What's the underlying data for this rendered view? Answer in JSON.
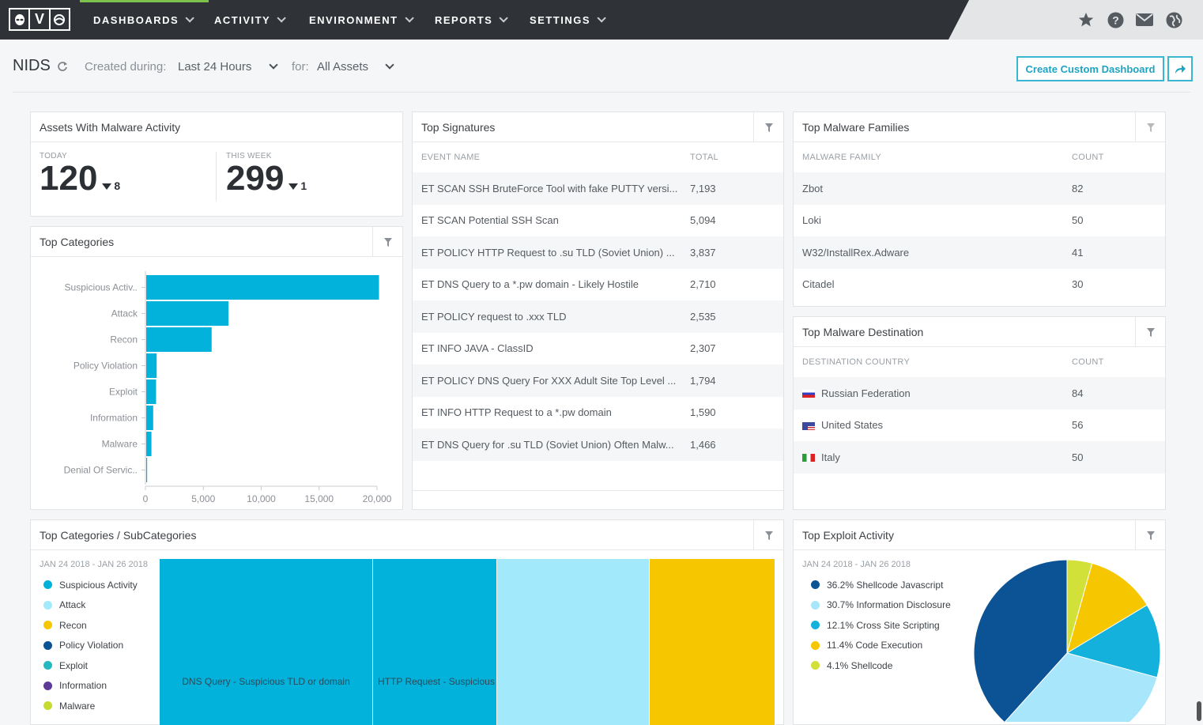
{
  "nav": {
    "logo_letters": [
      "",
      "V",
      ""
    ],
    "items": [
      {
        "label": "DASHBOARDS"
      },
      {
        "label": "ACTIVITY"
      },
      {
        "label": "ENVIRONMENT"
      },
      {
        "label": "REPORTS"
      },
      {
        "label": "SETTINGS"
      }
    ],
    "icons": [
      "star-icon",
      "help-icon",
      "mail-icon",
      "globe-icon"
    ]
  },
  "header": {
    "title": "NIDS",
    "created_label": "Created during:",
    "created_value": "Last 24 Hours",
    "for_label": "for:",
    "for_value": "All Assets",
    "create_button": "Create Custom Dashboard"
  },
  "assets_panel": {
    "title": "Assets With Malware Activity",
    "today_label": "TODAY",
    "today_value": "120",
    "today_delta": "8",
    "week_label": "THIS WEEK",
    "week_value": "299",
    "week_delta": "1"
  },
  "top_signatures": {
    "title": "Top Signatures",
    "col1": "EVENT NAME",
    "col2": "TOTAL",
    "rows": [
      {
        "name": "ET SCAN SSH BruteForce Tool with fake PUTTY versi...",
        "total": "7,193"
      },
      {
        "name": "ET SCAN Potential SSH Scan",
        "total": "5,094"
      },
      {
        "name": "ET POLICY HTTP Request to .su TLD (Soviet Union) ...",
        "total": "3,837"
      },
      {
        "name": "ET DNS Query to a *.pw domain - Likely Hostile",
        "total": "2,710"
      },
      {
        "name": "ET POLICY request to .xxx TLD",
        "total": "2,535"
      },
      {
        "name": "ET INFO JAVA - ClassID",
        "total": "2,307"
      },
      {
        "name": "ET POLICY DNS Query For XXX Adult Site Top Level ...",
        "total": "1,794"
      },
      {
        "name": "ET INFO HTTP Request to a *.pw domain",
        "total": "1,590"
      },
      {
        "name": "ET DNS Query for .su TLD (Soviet Union) Often Malw...",
        "total": "1,466"
      }
    ]
  },
  "malware_families": {
    "title": "Top Malware Families",
    "col1": "MALWARE FAMILY",
    "col2": "COUNT",
    "rows": [
      {
        "name": "Zbot",
        "count": "82"
      },
      {
        "name": "Loki",
        "count": "50"
      },
      {
        "name": "W32/InstallRex.Adware",
        "count": "41"
      },
      {
        "name": "Citadel",
        "count": "30"
      }
    ]
  },
  "malware_destination": {
    "title": "Top Malware Destination",
    "col1": "DESTINATION COUNTRY",
    "col2": "COUNT",
    "rows": [
      {
        "name": "Russian Federation",
        "count": "84",
        "flag": "ru"
      },
      {
        "name": "United States",
        "count": "56",
        "flag": "us"
      },
      {
        "name": "Italy",
        "count": "50",
        "flag": "it"
      }
    ]
  },
  "top_categories": {
    "title": "Top Categories"
  },
  "chart_data": [
    {
      "type": "bar",
      "orientation": "horizontal",
      "title": "Top Categories",
      "categories": [
        "Suspicious Activ..",
        "Attack",
        "Recon",
        "Policy Violation",
        "Exploit",
        "Information",
        "Malware",
        "Denial Of Servic.."
      ],
      "values": [
        20100,
        7100,
        5650,
        900,
        850,
        600,
        450,
        80
      ],
      "xlim": [
        0,
        20000
      ],
      "xticks": [
        "0",
        "5,000",
        "10,000",
        "15,000",
        "20,000"
      ],
      "color": "#02b2db"
    },
    {
      "type": "pie",
      "title": "Top Exploit Activity",
      "date_range": "JAN 24 2018 - JAN 26 2018",
      "slices": [
        {
          "label": "36.2% Shellcode Javascript",
          "value": 36.2,
          "color": "#0b5394"
        },
        {
          "label": "30.7% Information Disclosure",
          "value": 30.7,
          "color": "#a7e6fb"
        },
        {
          "label": "12.1% Cross Site Scripting",
          "value": 12.1,
          "color": "#13b1dc"
        },
        {
          "label": "11.4% Code Execution",
          "value": 11.4,
          "color": "#f6c600"
        },
        {
          "label": "4.1% Shellcode",
          "value": 4.1,
          "color": "#d2e03a"
        }
      ]
    }
  ],
  "subcategories": {
    "title": "Top Categories / SubCategories",
    "date_range": "JAN 24 2018 - JAN 26 2018",
    "legend": [
      {
        "label": "Suspicious Activity",
        "color": "#02b2db"
      },
      {
        "label": "Attack",
        "color": "#a2e9fb"
      },
      {
        "label": "Recon",
        "color": "#f6c600"
      },
      {
        "label": "Policy Violation",
        "color": "#0b5394"
      },
      {
        "label": "Exploit",
        "color": "#24b8c0"
      },
      {
        "label": "Information",
        "color": "#5e3a98"
      },
      {
        "label": "Malware",
        "color": "#c6db2e"
      }
    ],
    "blocks": [
      {
        "label": "DNS Query - Suspicious TLD or domain",
        "color": "#02b2db"
      },
      {
        "label": "HTTP Request - Suspicious",
        "color": "#02b2db"
      },
      {
        "label": "",
        "color": "#a2e9fb"
      },
      {
        "label": "",
        "color": "#f6c600"
      }
    ]
  }
}
